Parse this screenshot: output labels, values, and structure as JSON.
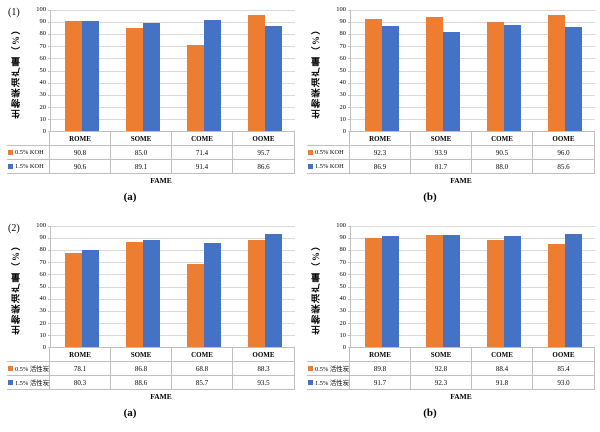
{
  "figure": {
    "background": "#ffffff",
    "grid_layout": "2x2"
  },
  "colors": {
    "series_orange": "#ED7D31",
    "series_blue": "#4472C4",
    "gridline": "#D9D9D9",
    "axis_border": "#BFBFBF",
    "text": "#000000"
  },
  "chart_data": [
    {
      "type": "bar",
      "row_label": "(1)",
      "sub_label": "(a)",
      "ylabel": "生物柴油产量（%）",
      "xlabel": "FAME",
      "ylim": [
        0,
        100
      ],
      "yticks": [
        100,
        90,
        80,
        70,
        60,
        50,
        40,
        30,
        20,
        10,
        0
      ],
      "grid": true,
      "legend_position": "data-table-left",
      "categories": [
        "ROME",
        "SOME",
        "COME",
        "OOME"
      ],
      "series": [
        {
          "name": "0.5% KOH",
          "color": "#ED7D31",
          "values": [
            90.8,
            85.0,
            71.4,
            95.7
          ],
          "display": [
            "90.8",
            "85.0",
            "71.4",
            "95.7"
          ]
        },
        {
          "name": "1.5% KOH",
          "color": "#4472C4",
          "values": [
            90.6,
            89.1,
            91.4,
            86.6
          ],
          "display": [
            "90.6",
            "89.1",
            "91.4",
            "86.6"
          ]
        }
      ]
    },
    {
      "type": "bar",
      "row_label": "",
      "sub_label": "(b)",
      "ylabel": "生物柴油产量（%）",
      "xlabel": "FAME",
      "ylim": [
        0,
        100
      ],
      "yticks": [
        100,
        90,
        80,
        70,
        60,
        50,
        40,
        30,
        20,
        10,
        0
      ],
      "grid": true,
      "legend_position": "data-table-left",
      "categories": [
        "ROME",
        "SOME",
        "COME",
        "OOME"
      ],
      "series": [
        {
          "name": "0.5% KOH",
          "color": "#ED7D31",
          "values": [
            92.3,
            93.9,
            90.5,
            96.0
          ],
          "display": [
            "92.3",
            "93.9",
            "90.5",
            "96.0"
          ]
        },
        {
          "name": "1.5% KOH",
          "color": "#4472C4",
          "values": [
            86.9,
            81.7,
            88.0,
            85.6
          ],
          "display": [
            "86.9",
            "81.7",
            "88.0",
            "85.6"
          ]
        }
      ]
    },
    {
      "type": "bar",
      "row_label": "(2)",
      "sub_label": "(a)",
      "ylabel": "生物柴油产量（%）",
      "xlabel": "FAME",
      "ylim": [
        0,
        100
      ],
      "yticks": [
        100,
        90,
        80,
        70,
        60,
        50,
        40,
        30,
        20,
        10,
        0
      ],
      "grid": true,
      "legend_position": "data-table-left",
      "categories": [
        "ROME",
        "SOME",
        "COME",
        "OOME"
      ],
      "series": [
        {
          "name": "0.5% 活性炭",
          "color": "#ED7D31",
          "values": [
            78.1,
            86.8,
            68.8,
            88.3
          ],
          "display": [
            "78.1",
            "86.8",
            "68.8",
            "88.3"
          ]
        },
        {
          "name": "1.5% 活性炭",
          "color": "#4472C4",
          "values": [
            80.3,
            88.6,
            85.7,
            93.5
          ],
          "display": [
            "80.3",
            "88.6",
            "85.7",
            "93.5"
          ]
        }
      ]
    },
    {
      "type": "bar",
      "row_label": "",
      "sub_label": "(b)",
      "ylabel": "生物柴油产量（%）",
      "xlabel": "FAME",
      "ylim": [
        0,
        100
      ],
      "yticks": [
        100,
        90,
        80,
        70,
        60,
        50,
        40,
        30,
        20,
        10,
        0
      ],
      "grid": true,
      "legend_position": "data-table-left",
      "categories": [
        "ROME",
        "SOME",
        "COME",
        "OOME"
      ],
      "series": [
        {
          "name": "0.5% 活性炭",
          "color": "#ED7D31",
          "values": [
            89.8,
            92.8,
            88.4,
            85.4
          ],
          "display": [
            "89.8",
            "92.8",
            "88.4",
            "85.4"
          ]
        },
        {
          "name": "1.5% 活性炭",
          "color": "#4472C4",
          "values": [
            91.7,
            92.3,
            91.8,
            93.0
          ],
          "display": [
            "91.7",
            "92.3",
            "91.8",
            "93.0"
          ]
        }
      ]
    }
  ]
}
